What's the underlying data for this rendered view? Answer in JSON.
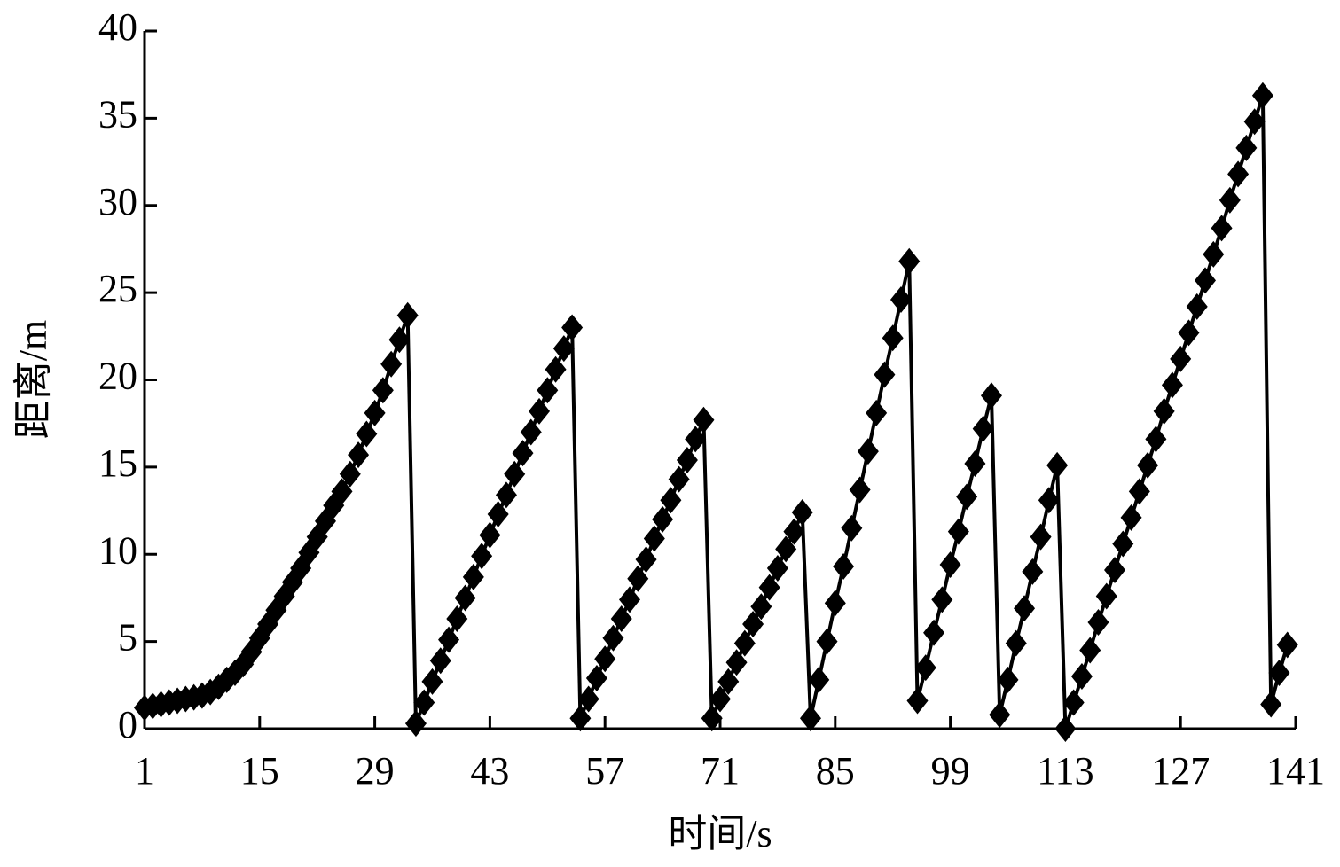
{
  "chart_data": {
    "type": "line",
    "x_label": "时间/s",
    "y_label": "距离/m",
    "x": [
      1,
      2,
      3,
      4,
      5,
      6,
      7,
      8,
      9,
      10,
      11,
      12,
      13,
      14,
      15,
      16,
      17,
      18,
      19,
      20,
      21,
      22,
      23,
      24,
      25,
      26,
      27,
      28,
      29,
      30,
      31,
      32,
      33,
      34,
      35,
      36,
      37,
      38,
      39,
      40,
      41,
      42,
      43,
      44,
      45,
      46,
      47,
      48,
      49,
      50,
      51,
      52,
      53,
      54,
      55,
      56,
      57,
      58,
      59,
      60,
      61,
      62,
      63,
      64,
      65,
      66,
      67,
      68,
      69,
      70,
      71,
      72,
      73,
      74,
      75,
      76,
      77,
      78,
      79,
      80,
      81,
      82,
      83,
      84,
      85,
      86,
      87,
      88,
      89,
      90,
      91,
      92,
      93,
      94,
      95,
      96,
      97,
      98,
      99,
      100,
      101,
      102,
      103,
      104,
      105,
      106,
      107,
      108,
      109,
      110,
      111,
      112,
      113,
      114,
      115,
      116,
      117,
      118,
      119,
      120,
      121,
      122,
      123,
      124,
      125,
      126,
      127,
      128,
      129,
      130,
      131,
      132,
      133,
      134,
      135,
      136,
      137,
      138,
      139,
      140
    ],
    "series": [
      {
        "color": "#000000",
        "values": [
          1.2,
          1.3,
          1.4,
          1.5,
          1.6,
          1.7,
          1.8,
          1.9,
          2.1,
          2.4,
          2.8,
          3.2,
          3.7,
          4.4,
          5.2,
          6.0,
          6.8,
          7.6,
          8.4,
          9.2,
          10.1,
          11.0,
          11.9,
          12.8,
          13.6,
          14.6,
          15.7,
          16.9,
          18.1,
          19.4,
          20.9,
          22.3,
          23.7,
          0.3,
          1.5,
          2.7,
          3.9,
          5.1,
          6.3,
          7.5,
          8.7,
          9.9,
          11.1,
          12.3,
          13.4,
          14.6,
          15.8,
          17.0,
          18.2,
          19.4,
          20.6,
          21.8,
          23.0,
          0.6,
          1.7,
          2.9,
          4.0,
          5.2,
          6.3,
          7.4,
          8.6,
          9.7,
          10.9,
          12.0,
          13.1,
          14.3,
          15.4,
          16.6,
          17.7,
          0.6,
          1.7,
          2.7,
          3.8,
          4.9,
          6.0,
          7.0,
          8.1,
          9.2,
          10.3,
          11.3,
          12.4,
          0.6,
          2.8,
          5.0,
          7.2,
          9.3,
          11.5,
          13.7,
          15.9,
          18.1,
          20.3,
          22.4,
          24.6,
          26.8,
          1.6,
          3.5,
          5.5,
          7.4,
          9.4,
          11.3,
          13.3,
          15.2,
          17.2,
          19.1,
          0.8,
          2.8,
          4.9,
          6.9,
          9.0,
          11.0,
          13.1,
          15.1,
          0,
          1.5,
          3.0,
          4.5,
          6.1,
          7.6,
          9.1,
          10.6,
          12.1,
          13.6,
          15.1,
          16.6,
          18.2,
          19.7,
          21.2,
          22.7,
          24.2,
          25.7,
          27.2,
          28.7,
          30.3,
          31.8,
          33.3,
          34.8,
          36.3,
          1.4,
          3.2,
          4.8
        ]
      }
    ],
    "xlim": [
      1,
      141
    ],
    "xticks": [
      1,
      15,
      29,
      43,
      57,
      71,
      85,
      99,
      113,
      127,
      141
    ],
    "ylim": [
      0,
      40
    ],
    "yticks": [
      0,
      5,
      10,
      15,
      20,
      25,
      30,
      35,
      40
    ],
    "marker": "diamond",
    "grid": false
  }
}
